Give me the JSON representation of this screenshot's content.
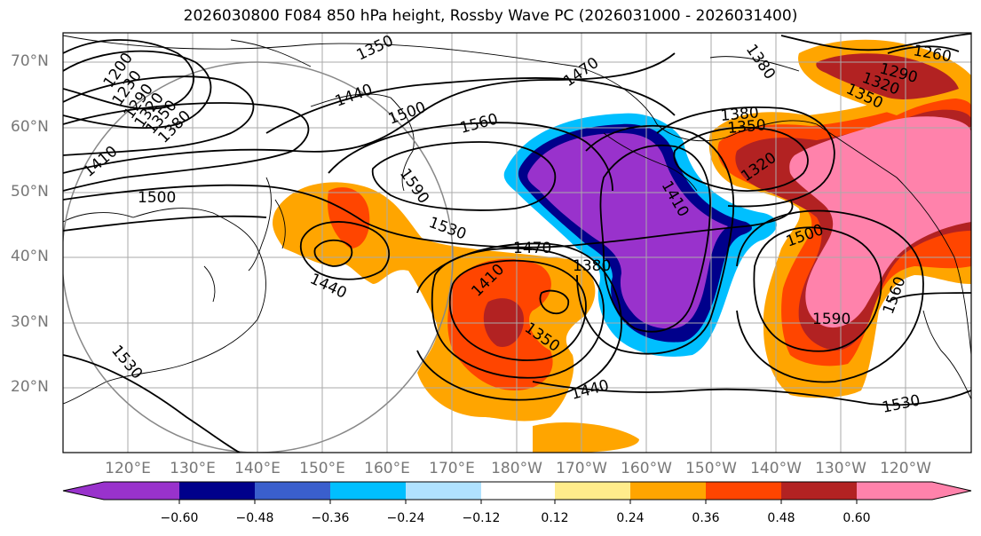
{
  "title": "2026030800 F084 850 hPa height, Rossby Wave PC (2026031000 - 2026031400)",
  "axes": {
    "lat_labels": [
      "70°N",
      "60°N",
      "50°N",
      "40°N",
      "30°N",
      "20°N"
    ],
    "lon_labels": [
      "120°E",
      "130°E",
      "140°E",
      "150°E",
      "160°E",
      "170°E",
      "180°W",
      "170°W",
      "160°W",
      "150°W",
      "140°W",
      "130°W",
      "120°W"
    ]
  },
  "colorbar": {
    "ticks": [
      "−0.60",
      "−0.48",
      "−0.36",
      "−0.24",
      "−0.12",
      "0.12",
      "0.24",
      "0.36",
      "0.48",
      "0.60"
    ],
    "colors": [
      "#9932cc",
      "#00008b",
      "#3a5fcd",
      "#00bfff",
      "#b0e2ff",
      "#ffffff",
      "#ffec8b",
      "#ffa500",
      "#ff4500",
      "#b22222",
      "#ff82ab"
    ]
  },
  "contour_labels": [
    {
      "text": "1350"
    },
    {
      "text": "1380"
    },
    {
      "text": "1260"
    },
    {
      "text": "1290"
    },
    {
      "text": "1320"
    },
    {
      "text": "1350"
    },
    {
      "text": "1200"
    },
    {
      "text": "1230"
    },
    {
      "text": "1290"
    },
    {
      "text": "1320"
    },
    {
      "text": "1350"
    },
    {
      "text": "1380"
    },
    {
      "text": "1470"
    },
    {
      "text": "1440"
    },
    {
      "text": "1500"
    },
    {
      "text": "1560"
    },
    {
      "text": "1380"
    },
    {
      "text": "1350"
    },
    {
      "text": "1410"
    },
    {
      "text": "1500"
    },
    {
      "text": "1320"
    },
    {
      "text": "1410"
    },
    {
      "text": "1590"
    },
    {
      "text": "1530"
    },
    {
      "text": "1470"
    },
    {
      "text": "1380"
    },
    {
      "text": "1500"
    },
    {
      "text": "1440"
    },
    {
      "text": "1410"
    },
    {
      "text": "1350"
    },
    {
      "text": "1590"
    },
    {
      "text": "1560"
    },
    {
      "text": "1530"
    },
    {
      "text": "1440"
    },
    {
      "text": "1530"
    }
  ],
  "colors": {
    "axis": "#000000",
    "grid": "#999999",
    "label_grey": "#777777"
  }
}
